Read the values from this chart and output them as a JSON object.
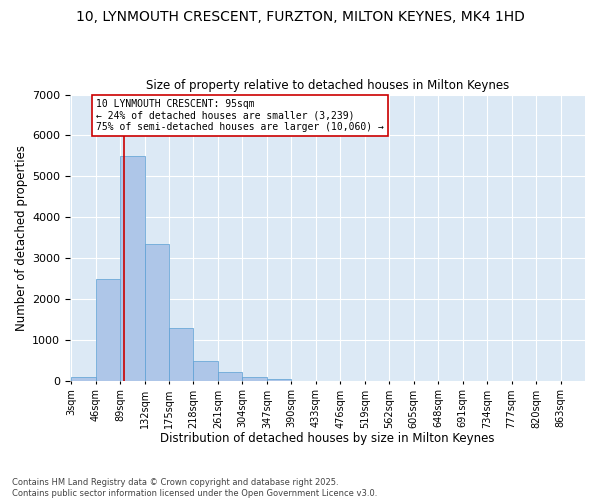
{
  "title1": "10, LYNMOUTH CRESCENT, FURZTON, MILTON KEYNES, MK4 1HD",
  "title2": "Size of property relative to detached houses in Milton Keynes",
  "xlabel": "Distribution of detached houses by size in Milton Keynes",
  "ylabel": "Number of detached properties",
  "bar_bins": [
    3,
    46,
    89,
    132,
    175,
    218,
    261,
    304,
    347,
    390,
    433,
    476,
    519,
    562,
    605,
    648,
    691,
    734,
    777,
    820,
    863
  ],
  "bar_heights": [
    100,
    2500,
    5500,
    3350,
    1300,
    470,
    210,
    90,
    50,
    0,
    0,
    0,
    0,
    0,
    0,
    0,
    0,
    0,
    0,
    0
  ],
  "bar_color": "#aec6e8",
  "bar_edgecolor": "#5a9fd4",
  "vline_x": 95,
  "vline_color": "#cc0000",
  "annotation_text": "10 LYNMOUTH CRESCENT: 95sqm\n← 24% of detached houses are smaller (3,239)\n75% of semi-detached houses are larger (10,060) →",
  "annotation_box_color": "white",
  "annotation_box_edgecolor": "#cc0000",
  "ylim": [
    0,
    7000
  ],
  "yticks": [
    0,
    1000,
    2000,
    3000,
    4000,
    5000,
    6000,
    7000
  ],
  "bg_color": "#dce9f5",
  "footer_text": "Contains HM Land Registry data © Crown copyright and database right 2025.\nContains public sector information licensed under the Open Government Licence v3.0.",
  "tick_label_fontsize": 7,
  "axis_label_fontsize": 8.5,
  "title_fontsize1": 10,
  "title_fontsize2": 8.5
}
